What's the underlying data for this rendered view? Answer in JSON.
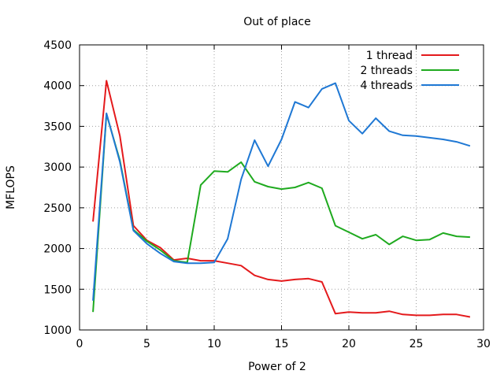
{
  "chart_data": {
    "type": "line",
    "title": "Out of place",
    "xlabel": "Power of 2",
    "ylabel": "MFLOPS",
    "xlim": [
      0,
      30
    ],
    "ylim": [
      1000,
      4500
    ],
    "xticks": [
      0,
      5,
      10,
      15,
      20,
      25,
      30
    ],
    "yticks": [
      1000,
      1500,
      2000,
      2500,
      3000,
      3500,
      4000,
      4500
    ],
    "grid": true,
    "legend_position": "top-right",
    "x": [
      1,
      2,
      3,
      4,
      5,
      6,
      7,
      8,
      9,
      10,
      11,
      12,
      13,
      14,
      15,
      16,
      17,
      18,
      19,
      20,
      21,
      22,
      23,
      24,
      25,
      26,
      27,
      28,
      29
    ],
    "series": [
      {
        "name": "1 thread",
        "color": "#e41a1c",
        "values": [
          2330,
          4060,
          3380,
          2280,
          2100,
          2010,
          1860,
          1880,
          1850,
          1850,
          1820,
          1790,
          1670,
          1620,
          1600,
          1620,
          1630,
          1590,
          1200,
          1220,
          1210,
          1210,
          1230,
          1190,
          1180,
          1180,
          1190,
          1190,
          1160
        ]
      },
      {
        "name": "2 threads",
        "color": "#1faa1f",
        "values": [
          1220,
          3650,
          3080,
          2230,
          2090,
          1980,
          1850,
          1830,
          2780,
          2950,
          2940,
          3060,
          2820,
          2760,
          2730,
          2750,
          2810,
          2740,
          2280,
          2200,
          2120,
          2170,
          2050,
          2150,
          2100,
          2110,
          2190,
          2150,
          2140
        ]
      },
      {
        "name": "4 threads",
        "color": "#1f78d4",
        "values": [
          1360,
          3660,
          3060,
          2220,
          2060,
          1940,
          1840,
          1820,
          1820,
          1830,
          2120,
          2850,
          3330,
          3010,
          3340,
          3800,
          3730,
          3960,
          4030,
          3570,
          3410,
          3600,
          3440,
          3390,
          3380,
          3360,
          3340,
          3310,
          3260
        ]
      }
    ]
  }
}
